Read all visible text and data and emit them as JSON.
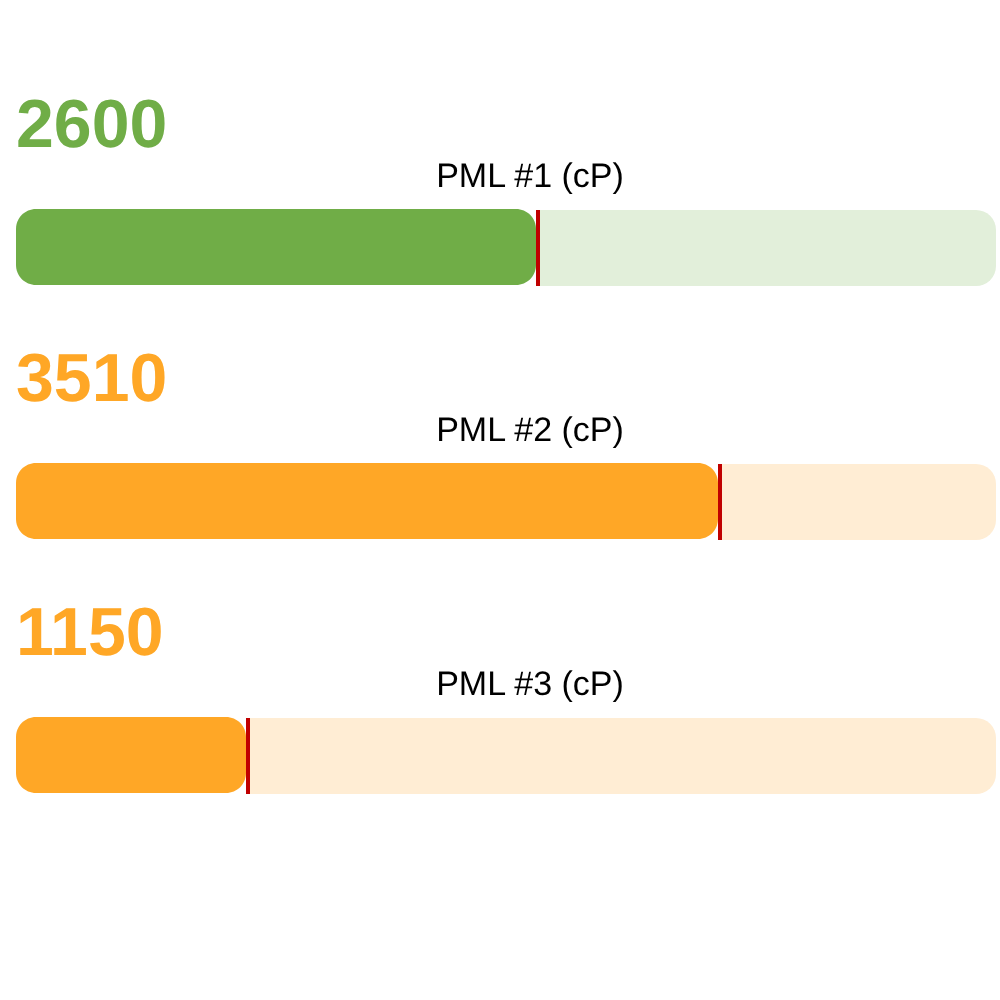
{
  "chart_data": {
    "type": "bar",
    "orientation": "horizontal",
    "categories": [
      "PML #1 (cP)",
      "PML #2 (cP)",
      "PML #3 (cP)"
    ],
    "values": [
      2600,
      3510,
      1150
    ],
    "colors": [
      "#70ad47",
      "#ffa726",
      "#ffa726"
    ],
    "data_labels": true,
    "xlim": [
      0,
      4900
    ],
    "tick_labels": false
  }
}
